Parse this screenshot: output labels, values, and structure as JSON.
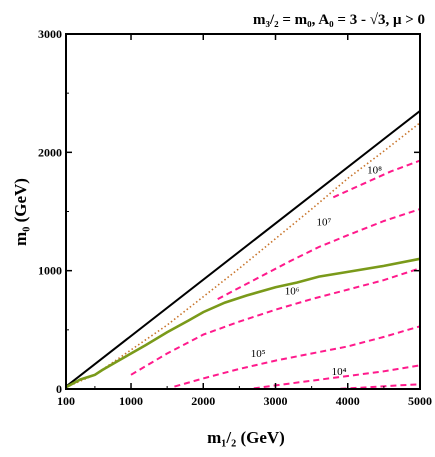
{
  "chart_data": {
    "type": "line",
    "title": "m₃/₂ = m₀, A₀ = 3 - √3,  μ > 0",
    "xlabel": "m₁/₂ (GeV)",
    "ylabel": "m₀ (GeV)",
    "xlim": [
      100,
      5000
    ],
    "ylim": [
      0,
      3000
    ],
    "xticks": [
      100,
      1000,
      2000,
      3000,
      4000,
      5000
    ],
    "xtick_labels": [
      "100",
      "1000",
      "2000",
      "3000",
      "4000",
      "5000"
    ],
    "yticks": [
      0,
      1000,
      2000,
      3000
    ],
    "ytick_labels": [
      "0",
      "1000",
      "2000",
      "3000"
    ],
    "grid": false,
    "series": [
      {
        "style": "solid",
        "color": "#000000",
        "points": [
          [
            100,
            20
          ],
          [
            5000,
            2350
          ]
        ]
      },
      {
        "style": "dotted",
        "color": "#c8742a",
        "points": [
          [
            100,
            15
          ],
          [
            500,
            120
          ],
          [
            1000,
            330
          ],
          [
            1500,
            540
          ],
          [
            2000,
            780
          ],
          [
            2500,
            1020
          ],
          [
            3000,
            1270
          ],
          [
            3500,
            1520
          ],
          [
            4000,
            1780
          ],
          [
            4500,
            2010
          ],
          [
            5000,
            2250
          ]
        ]
      },
      {
        "style": "solid",
        "color": "#7a9a1a",
        "points": [
          [
            100,
            15
          ],
          [
            300,
            80
          ],
          [
            450,
            110
          ],
          [
            500,
            120
          ],
          [
            600,
            160
          ],
          [
            800,
            230
          ],
          [
            1000,
            300
          ],
          [
            1200,
            370
          ],
          [
            1500,
            480
          ],
          [
            1800,
            580
          ],
          [
            2000,
            650
          ],
          [
            2300,
            730
          ],
          [
            2600,
            790
          ],
          [
            3000,
            860
          ],
          [
            3300,
            900
          ],
          [
            3600,
            950
          ],
          [
            4000,
            990
          ],
          [
            4500,
            1040
          ],
          [
            5000,
            1100
          ]
        ]
      },
      {
        "name": "10⁸",
        "style": "dashed",
        "color": "#ff1a8c",
        "points": [
          [
            3800,
            1620
          ],
          [
            4200,
            1730
          ],
          [
            4600,
            1840
          ],
          [
            5000,
            1930
          ]
        ]
      },
      {
        "name": "10⁷",
        "style": "dashed",
        "color": "#ff1a8c",
        "points": [
          [
            2200,
            760
          ],
          [
            2700,
            920
          ],
          [
            3200,
            1080
          ],
          [
            3600,
            1200
          ],
          [
            4000,
            1300
          ],
          [
            4500,
            1420
          ],
          [
            5000,
            1520
          ]
        ]
      },
      {
        "name": "10⁶",
        "style": "dashed",
        "color": "#ff1a8c",
        "points": [
          [
            1000,
            120
          ],
          [
            1500,
            300
          ],
          [
            2000,
            460
          ],
          [
            2500,
            570
          ],
          [
            3000,
            670
          ],
          [
            3500,
            760
          ],
          [
            4000,
            840
          ],
          [
            4500,
            920
          ],
          [
            5000,
            1020
          ]
        ]
      },
      {
        "name": "10⁵",
        "style": "dashed",
        "color": "#ff1a8c",
        "points": [
          [
            1600,
            20
          ],
          [
            2000,
            90
          ],
          [
            2500,
            170
          ],
          [
            3000,
            240
          ],
          [
            3500,
            300
          ],
          [
            4000,
            360
          ],
          [
            4500,
            440
          ],
          [
            5000,
            530
          ]
        ]
      },
      {
        "name": "10⁴",
        "style": "dashed",
        "color": "#ff1a8c",
        "points": [
          [
            2700,
            5
          ],
          [
            3000,
            30
          ],
          [
            3500,
            70
          ],
          [
            4000,
            110
          ],
          [
            4500,
            150
          ],
          [
            5000,
            200
          ]
        ]
      },
      {
        "style": "dashed",
        "color": "#ff1a8c",
        "points": [
          [
            3900,
            2
          ],
          [
            4300,
            15
          ],
          [
            4700,
            30
          ],
          [
            5000,
            40
          ]
        ]
      }
    ],
    "annotations": [
      {
        "text": "10⁸",
        "x": 4370,
        "y": 1820
      },
      {
        "text": "10⁷",
        "x": 3670,
        "y": 1380
      },
      {
        "text": "10⁶",
        "x": 3230,
        "y": 800
      },
      {
        "text": "10⁵",
        "x": 2760,
        "y": 270
      },
      {
        "text": "10⁴",
        "x": 3880,
        "y": 120
      }
    ]
  }
}
